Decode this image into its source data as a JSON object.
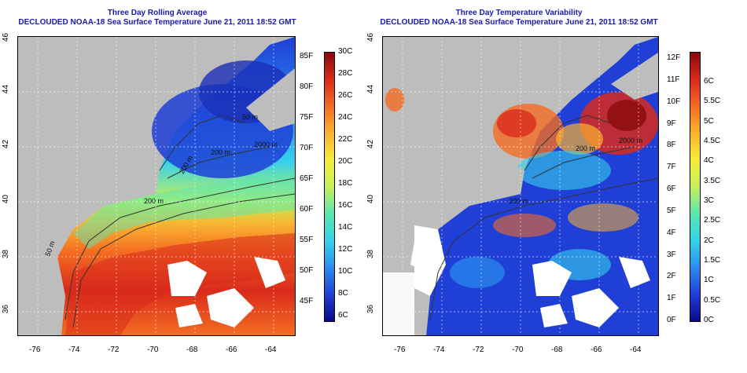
{
  "maps": [
    {
      "id": "left",
      "title_line1": "Three Day Rolling Average",
      "title_line2": "DECLOUDED NOAA-18 Sea Surface Temperature June 21, 2011 18:52 GMT",
      "lon_ticks": [
        "-76",
        "-74",
        "-72",
        "-70",
        "-68",
        "-66",
        "-64"
      ],
      "lat_ticks": [
        "36",
        "38",
        "40",
        "42",
        "44",
        "46"
      ],
      "contour_labels": [
        "50 m",
        "200 m",
        "2000 m",
        "200 m",
        "200 m",
        "50 m"
      ],
      "colorbar": {
        "left_labels": [
          "85F",
          "80F",
          "75F",
          "70F",
          "65F",
          "60F",
          "55F",
          "50F",
          "45F"
        ],
        "right_labels": [
          "30C",
          "28C",
          "26C",
          "24C",
          "22C",
          "20C",
          "18C",
          "16C",
          "14C",
          "12C",
          "10C",
          "8C",
          "6C"
        ],
        "colors": [
          "#0a0a8c",
          "#1f3fd6",
          "#2a8ef0",
          "#36d1ea",
          "#5ae6b0",
          "#c4f05a",
          "#f7ec3a",
          "#f9b230",
          "#f46d22",
          "#d92a1c",
          "#8a0a0a"
        ]
      }
    },
    {
      "id": "right",
      "title_line1": "Three Day Temperature Variability",
      "title_line2": "DECLOUDED NOAA-18 Sea Surface Temperature June 21, 2011 18:52 GMT",
      "lon_ticks": [
        "-76",
        "-74",
        "-72",
        "-70",
        "-68",
        "-66",
        "-64"
      ],
      "lat_ticks": [
        "36",
        "38",
        "40",
        "42",
        "44",
        "46"
      ],
      "contour_labels": [
        "2000 m",
        "200 m",
        "200 m"
      ],
      "colorbar": {
        "left_labels": [
          "12F",
          "11F",
          "10F",
          "9F",
          "8F",
          "7F",
          "6F",
          "5F",
          "4F",
          "3F",
          "2F",
          "1F",
          "0F"
        ],
        "right_labels": [
          "6C",
          "5.5C",
          "5C",
          "4.5C",
          "4C",
          "3.5C",
          "3C",
          "2.5C",
          "2C",
          "1.5C",
          "1C",
          "0.5C",
          "0C"
        ],
        "colors": [
          "#0a0a8c",
          "#1f3fd6",
          "#2a8ef0",
          "#36d1ea",
          "#5ae6b0",
          "#c4f05a",
          "#f7ec3a",
          "#f9b230",
          "#f46d22",
          "#d92a1c",
          "#8a0a0a"
        ]
      }
    }
  ]
}
